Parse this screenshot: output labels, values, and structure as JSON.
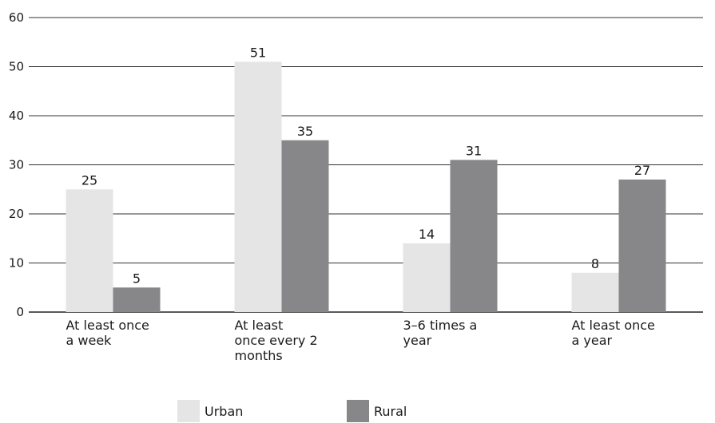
{
  "chart_data": {
    "type": "bar",
    "title": "",
    "xlabel": "",
    "ylabel": "",
    "ylim": [
      0,
      60
    ],
    "yticks": [
      0,
      10,
      20,
      30,
      40,
      50,
      60
    ],
    "grid": true,
    "legend_position": "bottom",
    "categories": [
      [
        "At least once",
        "a week"
      ],
      [
        "At least",
        "once every 2",
        "months"
      ],
      [
        "3–6 times a",
        "year"
      ],
      [
        "At least once",
        "a year"
      ]
    ],
    "series": [
      {
        "name": "Urban",
        "color": "#e5e5e5",
        "values": [
          25,
          51,
          14,
          8
        ]
      },
      {
        "name": "Rural",
        "color": "#87878a",
        "values": [
          5,
          35,
          31,
          27
        ]
      }
    ]
  }
}
